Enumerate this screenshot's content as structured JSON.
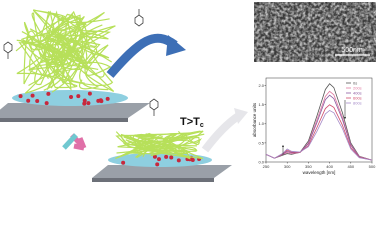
{
  "labels": {
    "condition": "T>T",
    "condition_sub": "c",
    "scale_bar": "500nm"
  },
  "chart_data": {
    "type": "line",
    "x_label": "wavelength [nm]",
    "y_label": "absorbance units",
    "x": [
      250,
      270,
      290,
      300,
      310,
      330,
      350,
      370,
      390,
      400,
      410,
      430,
      450,
      470,
      500
    ],
    "series": [
      {
        "name": "0s",
        "color": "#555555",
        "values": [
          0.2,
          0.1,
          0.18,
          0.22,
          0.2,
          0.25,
          0.55,
          1.2,
          1.9,
          2.05,
          1.95,
          1.3,
          0.5,
          0.15,
          0.05
        ]
      },
      {
        "name": "200s",
        "color": "#e07aa0",
        "values": [
          0.2,
          0.1,
          0.2,
          0.25,
          0.22,
          0.25,
          0.5,
          1.1,
          1.72,
          1.85,
          1.76,
          1.18,
          0.46,
          0.14,
          0.05
        ]
      },
      {
        "name": "400s",
        "color": "#8c5aa0",
        "values": [
          0.2,
          0.1,
          0.21,
          0.28,
          0.24,
          0.25,
          0.48,
          1.03,
          1.63,
          1.75,
          1.66,
          1.12,
          0.44,
          0.13,
          0.05
        ]
      },
      {
        "name": "600s",
        "color": "#d04c6c",
        "values": [
          0.2,
          0.1,
          0.22,
          0.31,
          0.26,
          0.25,
          0.43,
          0.9,
          1.4,
          1.5,
          1.43,
          0.97,
          0.38,
          0.12,
          0.05
        ]
      },
      {
        "name": "800s",
        "color": "#a58ac8",
        "values": [
          0.2,
          0.1,
          0.23,
          0.34,
          0.28,
          0.26,
          0.4,
          0.8,
          1.26,
          1.35,
          1.29,
          0.88,
          0.34,
          0.11,
          0.05
        ]
      }
    ],
    "xlim": [
      250,
      500
    ],
    "xticks": [
      250,
      300,
      350,
      400,
      450,
      500
    ],
    "ylim": [
      0,
      2.2
    ],
    "yticks": [
      {
        "value": 0,
        "label": "0.0"
      },
      {
        "value": 0.5,
        "label": "0.5"
      },
      {
        "value": 1,
        "label": "1.0"
      },
      {
        "value": 1.5,
        "label": "1.5"
      },
      {
        "value": 2,
        "label": "2.0"
      }
    ]
  }
}
